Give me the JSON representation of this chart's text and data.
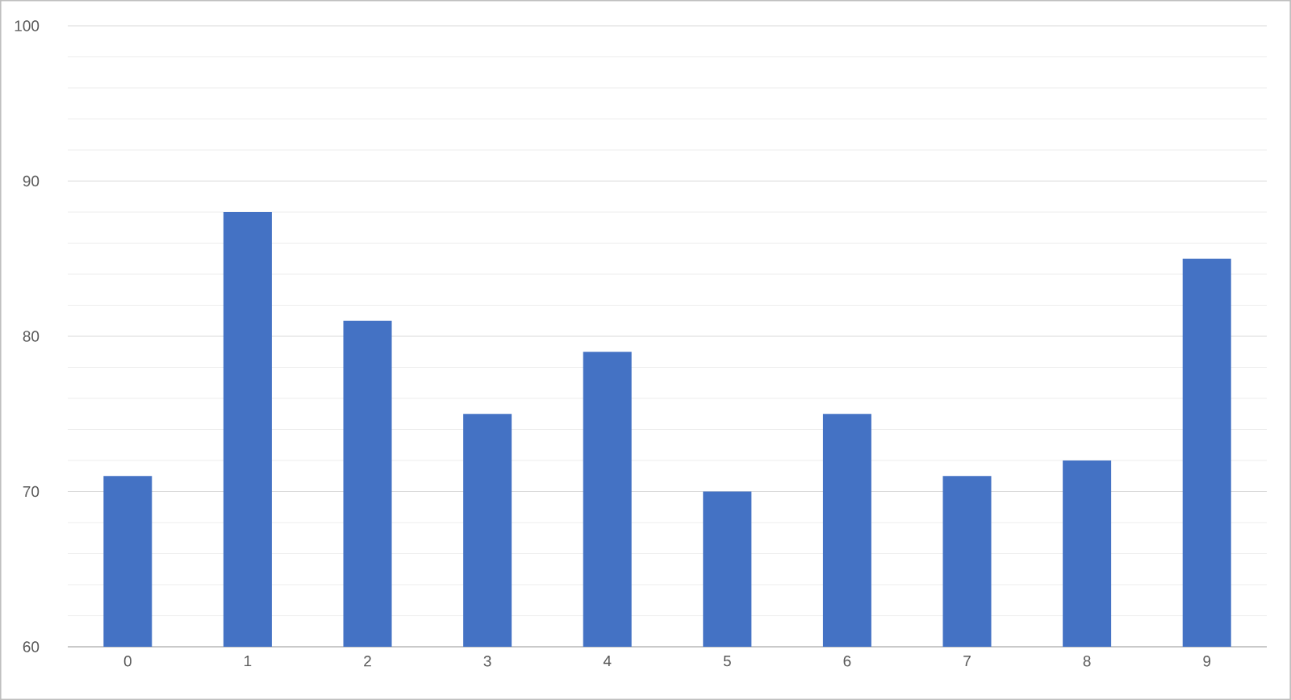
{
  "chart_data": {
    "type": "bar",
    "categories": [
      "0",
      "1",
      "2",
      "3",
      "4",
      "5",
      "6",
      "7",
      "8",
      "9"
    ],
    "values": [
      71,
      88,
      81,
      75,
      79,
      70,
      75,
      71,
      72,
      85
    ],
    "color": "#4472c4",
    "ylim": [
      60,
      100
    ],
    "yticks": [
      60,
      {
        "value": 62,
        "label": null
      },
      {
        "value": 64,
        "label": null
      },
      {
        "value": 66,
        "label": null
      },
      {
        "value": 68,
        "label": null
      },
      70,
      {
        "value": 72,
        "label": null
      },
      {
        "value": 74,
        "label": null
      },
      {
        "value": 76,
        "label": null
      },
      {
        "value": 78,
        "label": null
      },
      80,
      {
        "value": 82,
        "label": null
      },
      {
        "value": 84,
        "label": null
      },
      {
        "value": 86,
        "label": null
      },
      {
        "value": 88,
        "label": null
      },
      90,
      {
        "value": 92,
        "label": null
      },
      {
        "value": 94,
        "label": null
      },
      {
        "value": 96,
        "label": null
      },
      {
        "value": 98,
        "label": null
      },
      100
    ],
    "grid": "y"
  }
}
